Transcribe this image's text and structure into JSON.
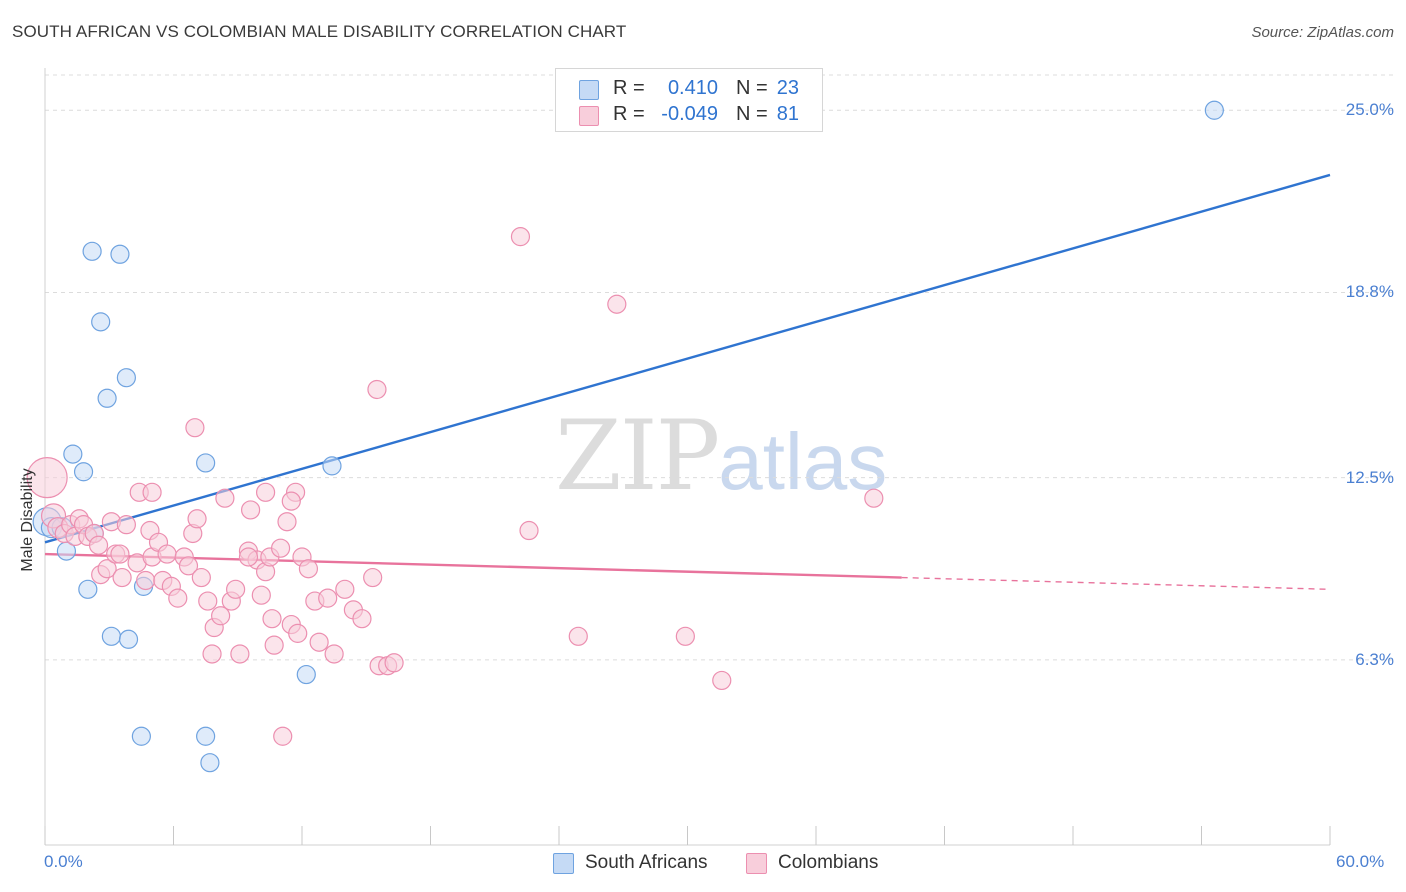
{
  "title": "SOUTH AFRICAN VS COLOMBIAN MALE DISABILITY CORRELATION CHART",
  "source": "Source: ZipAtlas.com",
  "watermark": {
    "zip": "ZIP",
    "atlas": "atlas"
  },
  "colors": {
    "blue": "#6fa3e0",
    "blue_fill": "#c5daf5",
    "blue_line": "#2f74d0",
    "pink": "#ec8fb0",
    "pink_fill": "#f8cedb",
    "pink_line": "#e8739c",
    "grid": "#dcdcdc",
    "axis_text": "#4a7fd1"
  },
  "legend_top": {
    "rows": [
      {
        "r_label": "R =",
        "r_value": "0.410",
        "n_label": "N =",
        "n_value": "23"
      },
      {
        "r_label": "R =",
        "r_value": "-0.049",
        "n_label": "N =",
        "n_value": "81"
      }
    ]
  },
  "legend_bottom": {
    "items": [
      "South Africans",
      "Colombians"
    ]
  },
  "chart_data": {
    "type": "scatter",
    "title": "SOUTH AFRICAN VS COLOMBIAN MALE DISABILITY CORRELATION CHART",
    "xlabel": "",
    "ylabel": "Male Disability",
    "xlim": [
      0,
      60
    ],
    "ylim": [
      0,
      26.2
    ],
    "x_tick_labels": [
      "0.0%",
      "60.0%"
    ],
    "y_ticks": [
      6.3,
      12.5,
      18.8,
      25.0
    ],
    "y_tick_labels": [
      "6.3%",
      "12.5%",
      "18.8%",
      "25.0%"
    ],
    "legend": "bottom-center",
    "series": [
      {
        "name": "South Africans",
        "r": 0.41,
        "n": 23,
        "trend": {
          "x": [
            0,
            60
          ],
          "y": [
            10.3,
            22.8
          ],
          "dashed_from": null
        },
        "points": [
          [
            0.1,
            11.0
          ],
          [
            0.3,
            10.8
          ],
          [
            0.8,
            10.8
          ],
          [
            1.3,
            13.3
          ],
          [
            1.8,
            12.7
          ],
          [
            2.0,
            8.7
          ],
          [
            1.0,
            10.0
          ],
          [
            2.2,
            20.2
          ],
          [
            3.5,
            20.1
          ],
          [
            2.6,
            17.8
          ],
          [
            3.8,
            15.9
          ],
          [
            2.9,
            15.2
          ],
          [
            2.3,
            10.6
          ],
          [
            3.1,
            7.1
          ],
          [
            3.9,
            7.0
          ],
          [
            4.5,
            3.7
          ],
          [
            4.6,
            8.8
          ],
          [
            7.5,
            13.0
          ],
          [
            7.5,
            3.7
          ],
          [
            7.7,
            2.8
          ],
          [
            12.2,
            5.8
          ],
          [
            13.4,
            12.9
          ],
          [
            54.6,
            25.0
          ]
        ],
        "point_sizes": [
          14,
          10,
          10,
          9,
          9,
          9,
          9,
          9,
          9,
          9,
          9,
          9,
          9,
          9,
          9,
          9,
          9,
          9,
          9,
          9,
          9,
          9,
          9
        ]
      },
      {
        "name": "Colombians",
        "r": -0.049,
        "n": 81,
        "trend": {
          "x": [
            0,
            60
          ],
          "y": [
            9.9,
            8.7
          ],
          "dashed_from": 40
        },
        "points": [
          [
            0.1,
            12.5
          ],
          [
            0.4,
            11.2
          ],
          [
            0.6,
            10.8
          ],
          [
            0.9,
            10.6
          ],
          [
            1.2,
            10.9
          ],
          [
            1.4,
            10.5
          ],
          [
            1.6,
            11.1
          ],
          [
            1.8,
            10.9
          ],
          [
            2.0,
            10.5
          ],
          [
            2.3,
            10.6
          ],
          [
            2.5,
            10.2
          ],
          [
            2.6,
            9.2
          ],
          [
            2.9,
            9.4
          ],
          [
            3.1,
            11.0
          ],
          [
            3.3,
            9.9
          ],
          [
            3.5,
            9.9
          ],
          [
            3.6,
            9.1
          ],
          [
            3.8,
            10.9
          ],
          [
            4.3,
            9.6
          ],
          [
            4.4,
            12.0
          ],
          [
            4.7,
            9.0
          ],
          [
            4.9,
            10.7
          ],
          [
            5.0,
            9.8
          ],
          [
            5.3,
            10.3
          ],
          [
            5.5,
            9.0
          ],
          [
            5.7,
            9.9
          ],
          [
            5.9,
            8.8
          ],
          [
            6.2,
            8.4
          ],
          [
            6.5,
            9.8
          ],
          [
            6.7,
            9.5
          ],
          [
            6.9,
            10.6
          ],
          [
            7.1,
            11.1
          ],
          [
            7.3,
            9.1
          ],
          [
            7.6,
            8.3
          ],
          [
            7.8,
            6.5
          ],
          [
            7.9,
            7.4
          ],
          [
            8.2,
            7.8
          ],
          [
            8.4,
            11.8
          ],
          [
            8.7,
            8.3
          ],
          [
            8.9,
            8.7
          ],
          [
            9.1,
            6.5
          ],
          [
            9.5,
            10.0
          ],
          [
            9.6,
            11.4
          ],
          [
            9.9,
            9.7
          ],
          [
            10.1,
            8.5
          ],
          [
            10.3,
            9.3
          ],
          [
            10.5,
            9.8
          ],
          [
            10.6,
            7.7
          ],
          [
            10.7,
            6.8
          ],
          [
            11.0,
            10.1
          ],
          [
            11.3,
            11.0
          ],
          [
            11.5,
            7.5
          ],
          [
            11.8,
            7.2
          ],
          [
            12.0,
            9.8
          ],
          [
            12.3,
            9.4
          ],
          [
            12.6,
            8.3
          ],
          [
            12.8,
            6.9
          ],
          [
            13.2,
            8.4
          ],
          [
            13.5,
            6.5
          ],
          [
            14.0,
            8.7
          ],
          [
            14.4,
            8.0
          ],
          [
            14.8,
            7.7
          ],
          [
            15.3,
            9.1
          ],
          [
            15.6,
            6.1
          ],
          [
            16.0,
            6.1
          ],
          [
            16.3,
            6.2
          ],
          [
            10.3,
            12.0
          ],
          [
            11.7,
            12.0
          ],
          [
            11.5,
            11.7
          ],
          [
            7.0,
            14.2
          ],
          [
            15.5,
            15.5
          ],
          [
            5.0,
            12.0
          ],
          [
            11.1,
            3.7
          ],
          [
            22.2,
            20.7
          ],
          [
            26.7,
            18.4
          ],
          [
            22.6,
            10.7
          ],
          [
            24.9,
            7.1
          ],
          [
            29.9,
            7.1
          ],
          [
            31.6,
            5.6
          ],
          [
            38.7,
            11.8
          ],
          [
            9.5,
            9.8
          ]
        ],
        "point_sizes": [
          20,
          12,
          10,
          9,
          9,
          9,
          9,
          9,
          9,
          9,
          9,
          9,
          9,
          9,
          9,
          9,
          9,
          9,
          9,
          9,
          9,
          9,
          9,
          9,
          9,
          9,
          9,
          9,
          9,
          9,
          9,
          9,
          9,
          9,
          9,
          9,
          9,
          9,
          9,
          9,
          9,
          9,
          9,
          9,
          9,
          9,
          9,
          9,
          9,
          9,
          9,
          9,
          9,
          9,
          9,
          9,
          9,
          9,
          9,
          9,
          9,
          9,
          9,
          9,
          9,
          9,
          9,
          9,
          9,
          9,
          9,
          9,
          9,
          9,
          9,
          9,
          9,
          9,
          9,
          9,
          9
        ]
      }
    ]
  }
}
